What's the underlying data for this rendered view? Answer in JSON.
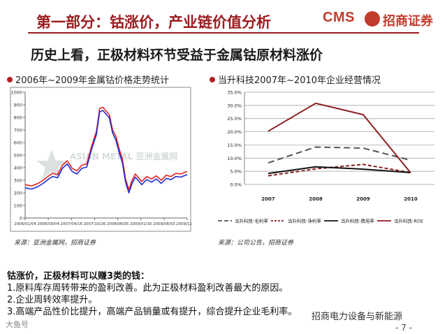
{
  "header": {
    "title": "第一部分：钴涨价，产业链价值分析",
    "logo_cms": "CMS",
    "logo_name": "招商证券",
    "subtitle": "历史上看，正极材料环节受益于金属钴原材料涨价"
  },
  "left_panel": {
    "heading": "2006年~2009年金属钴价格走势统计",
    "source": "来源：亚洲金属网，招商证券",
    "watermark": "ASIAN METAL 亚洲金属网"
  },
  "right_panel": {
    "heading": "当升科技2007年~2010年企业经营情况",
    "source": "来源：公司公告，招商证券"
  },
  "chart_data": [
    {
      "type": "line",
      "title": "2006年~2009年金属钴价格走势统计",
      "xlabel": "",
      "ylabel": "",
      "ylim": [
        0,
        1000
      ],
      "yticks": [
        0,
        100,
        200,
        300,
        400,
        500,
        600,
        700,
        800,
        900,
        1000
      ],
      "xticks": [
        "2006/01/04",
        "2006/09/04",
        "2007/04/16",
        "2007/10/26",
        "2008/06/05",
        "2009/01/16",
        "2009/08/03",
        "2009/12/28"
      ],
      "grid": false,
      "x": [
        0,
        0.04,
        0.08,
        0.11,
        0.14,
        0.17,
        0.2,
        0.23,
        0.26,
        0.29,
        0.32,
        0.35,
        0.38,
        0.41,
        0.44,
        0.46,
        0.48,
        0.5,
        0.52,
        0.54,
        0.56,
        0.58,
        0.6,
        0.62,
        0.64,
        0.66,
        0.68,
        0.7,
        0.72,
        0.75,
        0.78,
        0.81,
        0.84,
        0.87,
        0.9,
        0.93,
        0.96,
        1.0
      ],
      "series": [
        {
          "color": "#e8201c",
          "values": [
            265,
            255,
            275,
            300,
            330,
            355,
            345,
            420,
            455,
            395,
            375,
            420,
            430,
            570,
            690,
            870,
            880,
            850,
            820,
            700,
            650,
            550,
            470,
            310,
            225,
            300,
            350,
            320,
            290,
            330,
            310,
            335,
            300,
            340,
            330,
            355,
            350,
            370
          ]
        },
        {
          "color": "#1f2bd6",
          "values": [
            240,
            230,
            250,
            275,
            305,
            330,
            320,
            395,
            430,
            370,
            350,
            395,
            405,
            545,
            665,
            845,
            855,
            825,
            795,
            675,
            620,
            520,
            440,
            285,
            200,
            275,
            325,
            295,
            265,
            305,
            285,
            310,
            275,
            315,
            305,
            330,
            325,
            345
          ]
        }
      ]
    },
    {
      "type": "line",
      "title": "当升科技2007年~2010年企业经营情况",
      "categories": [
        "2007",
        "2008",
        "2009",
        "2010"
      ],
      "ylim": [
        0,
        35
      ],
      "yticks": [
        "0.0%",
        "5.0%",
        "10.0%",
        "15.0%",
        "20.0%",
        "25.0%",
        "30.0%",
        "35.0%"
      ],
      "legend": "bottom",
      "grid": true,
      "series": [
        {
          "name": "当升科技-毛利率",
          "color": "#555555",
          "dash": "long",
          "values": [
            8.2,
            14.2,
            13.8,
            9.2
          ]
        },
        {
          "name": "当升科技-净利率",
          "color": "#8b1e22",
          "dash": "short",
          "values": [
            3.3,
            5.9,
            7.6,
            4.5
          ]
        },
        {
          "name": "当升科技-费用率",
          "color": "#111111",
          "dash": "solid",
          "values": [
            4.2,
            6.7,
            5.8,
            4.5
          ]
        },
        {
          "name": "当升科技-ROE",
          "color": "#8b1e22",
          "dash": "solid",
          "values": [
            20.2,
            30.8,
            26.5,
            4.4
          ]
        }
      ]
    }
  ],
  "text": {
    "intro": "钴涨价，正极材料可以赚3类的钱：",
    "point1": "1.原料库存周转带来的盈利改善。此为正极材料盈利改善最大的原因。",
    "point2": "2.企业周转效率提升。",
    "point3": "3.高端产品性价比提升，高端产品销量或有提升，综合提升企业毛利率。"
  },
  "footer": {
    "left": "大鱼号",
    "right": "招商电力设备与新能源",
    "page": "- 7 -"
  }
}
